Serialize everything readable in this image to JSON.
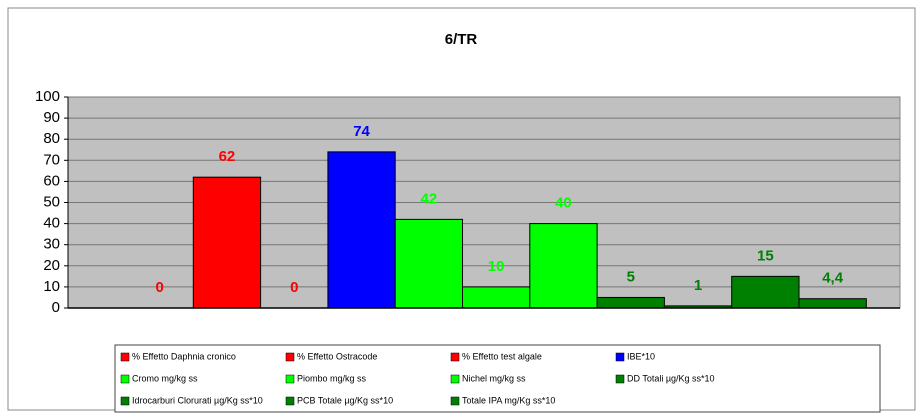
{
  "chart_data": {
    "type": "bar",
    "title": "6/TR",
    "series": [
      {
        "name": "% Effetto Daphnia cronico",
        "color": "#ff0000",
        "values": [
          0
        ]
      },
      {
        "name": "% Effetto Ostracode",
        "color": "#ff0000",
        "values": [
          62
        ]
      },
      {
        "name": "% Effetto test algale",
        "color": "#ff0000",
        "values": [
          0
        ]
      },
      {
        "name": "IBE*10",
        "color": "#0000ff",
        "values": [
          74
        ]
      },
      {
        "name": "Cromo mg/kg ss",
        "color": "#00ff00",
        "values": [
          42
        ]
      },
      {
        "name": "Piombo mg/kg ss",
        "color": "#00ff00",
        "values": [
          10
        ]
      },
      {
        "name": "Nichel mg/kg ss",
        "color": "#00ff00",
        "values": [
          40
        ]
      },
      {
        "name": "DD Totali µg/Kg ss*10",
        "color": "#008000",
        "values": [
          5
        ]
      },
      {
        "name": "Idrocarburi Clorurati µg/Kg ss*10",
        "color": "#008000",
        "values": [
          1
        ]
      },
      {
        "name": "PCB Totale µg/Kg ss*10",
        "color": "#008000",
        "values": [
          15
        ]
      },
      {
        "name": "Totale IPA mg/Kg ss*10",
        "color": "#008000",
        "values": [
          4.4
        ],
        "value_labels": [
          "4,4"
        ]
      }
    ],
    "ylim": [
      0,
      100
    ],
    "yticks": [
      0,
      10,
      20,
      30,
      40,
      50,
      60,
      70,
      80,
      90,
      100
    ],
    "legend": "bottom"
  }
}
